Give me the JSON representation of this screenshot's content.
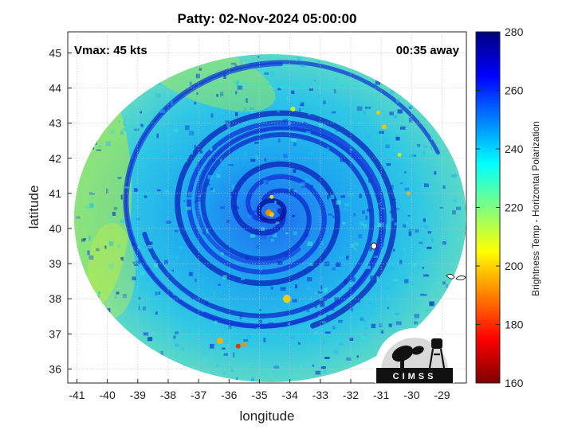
{
  "title": "Patty: 02-Nov-2024 05:00:00",
  "vmax_text": "Vmax: 45 kts",
  "time_offset_text": "00:35 away",
  "chart_data": {
    "type": "heatmap",
    "title": "Patty: 02-Nov-2024 05:00:00",
    "xlabel": "longitude",
    "ylabel": "latitude",
    "xlim": [
      -41.3,
      -28.2
    ],
    "ylim": [
      35.6,
      45.6
    ],
    "x_ticks": [
      -41,
      -40,
      -39,
      -38,
      -37,
      -36,
      -35,
      -34,
      -33,
      -32,
      -31,
      -30,
      -29
    ],
    "y_ticks": [
      36,
      37,
      38,
      39,
      40,
      41,
      42,
      43,
      44,
      45
    ],
    "grid": true,
    "storm_center": {
      "lon": -34.6,
      "lat": 40.5
    },
    "colorbar": {
      "label": "Brightness Temp - Horizontal Polarization",
      "min": 160,
      "max": 280,
      "ticks": [
        160,
        180,
        200,
        220,
        240,
        260,
        280
      ],
      "colormap": "jet"
    }
  },
  "logo": {
    "text": "CIMSS"
  },
  "colors": {
    "jet_dark_blue": "#00007f",
    "jet_blue": "#0000ff",
    "jet_cyan": "#00ffff",
    "jet_yellow": "#ffff00",
    "jet_red": "#ff0000",
    "jet_dark_red": "#7f0000"
  }
}
